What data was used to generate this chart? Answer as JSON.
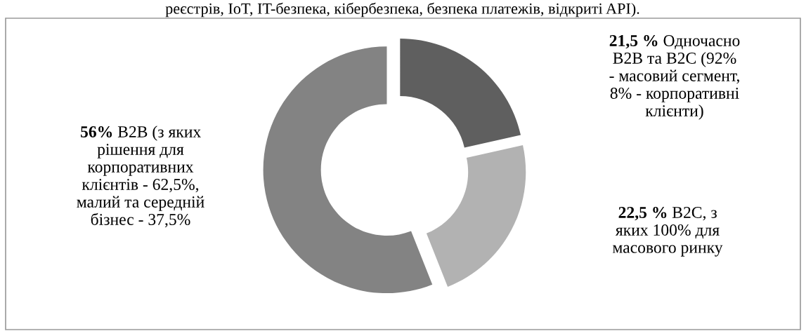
{
  "chart_data": {
    "type": "donut",
    "categories": [
      "Одночасно\nB2B та B2C (92%\n- масовий сегмент,\n8% - корпоративні\nклієнти)",
      "B2C, з\nяких 100% для\nмасового ринку",
      "B2B (з яких\nрішення для\nкорпоративних\nклієнтів - 62,5%,\nмалий та середній\nбізнес - 37,5%"
    ],
    "values": [
      21.5,
      22.5,
      56
    ],
    "value_labels": [
      "21,5 %",
      "22,5 %",
      "56%"
    ],
    "colors": [
      "#5f5f5f",
      "#b2b2b2",
      "#838383"
    ],
    "annotations": [
      "реєстрів, IoT, IT-безпека, кібербезпека, безпека платежів, відкриті API)."
    ]
  }
}
